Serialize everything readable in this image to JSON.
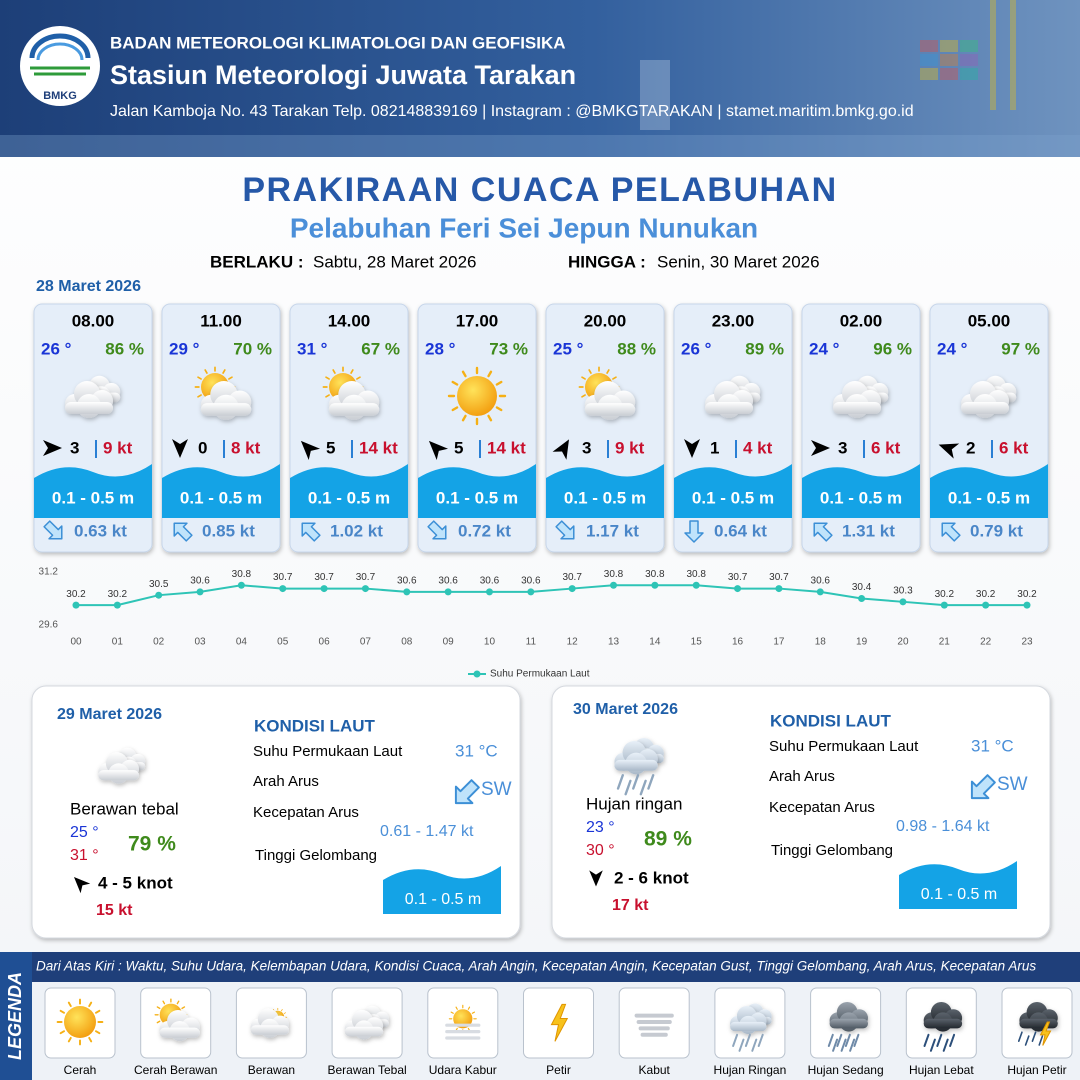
{
  "header": {
    "logo": "BMKG",
    "agency": "BADAN METEOROLOGI KLIMATOLOGI DAN GEOFISIKA",
    "station": "Stasiun Meteorologi Juwata Tarakan",
    "contact": "Jalan Kamboja No. 43 Tarakan  Telp. 082148839169 | Instagram : @BMKGTARAKAN | stamet.maritim.bmkg.go.id"
  },
  "title": "PRAKIRAAN CUACA PELABUHAN",
  "subtitle": "Pelabuhan Feri Sei Jepun Nunukan",
  "validity": {
    "from_label": "BERLAKU :",
    "from": "Sabtu, 28 Maret 2026",
    "to_label": "HINGGA :",
    "to": "Senin, 30 Maret 2026"
  },
  "day1": {
    "date": "28 Maret 2026",
    "slots": [
      {
        "time": "08.00",
        "temp": "26 °",
        "humidity": "86 %",
        "wind": "3",
        "gust": "9 kt",
        "wave": "0.1 - 0.5 m",
        "current": "0.63 kt"
      },
      {
        "time": "11.00",
        "temp": "29 °",
        "humidity": "70 %",
        "wind": "0",
        "gust": "8 kt",
        "wave": "0.1 - 0.5 m",
        "current": "0.85 kt"
      },
      {
        "time": "14.00",
        "temp": "31 °",
        "humidity": "67 %",
        "wind": "5",
        "gust": "14 kt",
        "wave": "0.1 - 0.5 m",
        "current": "1.02 kt"
      },
      {
        "time": "17.00",
        "temp": "28 °",
        "humidity": "73 %",
        "wind": "5",
        "gust": "14 kt",
        "wave": "0.1 - 0.5 m",
        "current": "0.72 kt"
      },
      {
        "time": "20.00",
        "temp": "25 °",
        "humidity": "88 %",
        "wind": "3",
        "gust": "9 kt",
        "wave": "0.1 - 0.5 m",
        "current": "1.17 kt"
      },
      {
        "time": "23.00",
        "temp": "26 °",
        "humidity": "89 %",
        "wind": "1",
        "gust": "4 kt",
        "wave": "0.1 - 0.5 m",
        "current": "0.64 kt"
      },
      {
        "time": "02.00",
        "temp": "24 °",
        "humidity": "96 %",
        "wind": "3",
        "gust": "6 kt",
        "wave": "0.1 - 0.5 m",
        "current": "1.31 kt"
      },
      {
        "time": "05.00",
        "temp": "24 °",
        "humidity": "97 %",
        "wind": "2",
        "gust": "6 kt",
        "wave": "0.1 - 0.5 m",
        "current": "0.79 kt"
      }
    ]
  },
  "chart_data": {
    "type": "line",
    "categories": [
      "00",
      "01",
      "02",
      "03",
      "04",
      "05",
      "06",
      "07",
      "08",
      "09",
      "10",
      "11",
      "12",
      "13",
      "14",
      "15",
      "16",
      "17",
      "18",
      "19",
      "20",
      "21",
      "22",
      "23"
    ],
    "series": [
      {
        "name": "Suhu Permukaan Laut",
        "color": "#2ec4b6",
        "values": [
          30.2,
          30.2,
          30.5,
          30.6,
          30.8,
          30.7,
          30.7,
          30.7,
          30.6,
          30.6,
          30.6,
          30.6,
          30.7,
          30.8,
          30.8,
          30.8,
          30.7,
          30.7,
          30.6,
          30.4,
          30.3,
          30.2,
          30.2,
          30.2
        ]
      }
    ],
    "ylim": [
      29.6,
      31.2
    ],
    "yticks": [
      29.6,
      31.2
    ]
  },
  "days": [
    {
      "date": "29 Maret 2026",
      "condition": "Berawan tebal",
      "temp_min": "25 °",
      "temp_max": "31 °",
      "humidity": "79 %",
      "wind": "4 - 5 knot",
      "gust": "15 kt",
      "sea": {
        "heading": "KONDISI LAUT",
        "sst_label": "Suhu Permukaan Laut",
        "sst": "31 °C",
        "current_dir_label": "Arah Arus",
        "current_dir": "SW",
        "current_speed_label": "Kecepatan Arus",
        "current_speed": "0.61 - 1.47 kt",
        "wave_label": "Tinggi Gelombang",
        "wave": "0.1 - 0.5 m"
      }
    },
    {
      "date": "30 Maret 2026",
      "condition": "Hujan ringan",
      "temp_min": "23 °",
      "temp_max": "30 °",
      "humidity": "89 %",
      "wind": "2 - 6 knot",
      "gust": "17 kt",
      "sea": {
        "heading": "KONDISI LAUT",
        "sst_label": "Suhu Permukaan Laut",
        "sst": "31 °C",
        "current_dir_label": "Arah Arus",
        "current_dir": "SW",
        "current_speed_label": "Kecepatan Arus",
        "current_speed": "0.98 - 1.64 kt",
        "wave_label": "Tinggi Gelombang",
        "wave": "0.1 - 0.5 m"
      }
    }
  ],
  "legend": {
    "label": "LEGENDA",
    "description": "Dari Atas Kiri : Waktu, Suhu Udara, Kelembapan Udara, Kondisi Cuaca, Arah Angin, Kecepatan Angin, Kecepatan Gust, Tinggi Gelombang, Arah Arus, Kecepatan Arus",
    "items": [
      "Cerah",
      "Cerah Berawan",
      "Berawan",
      "Berawan Tebal",
      "Udara Kabur",
      "Petir",
      "Kabut",
      "Hujan Ringan",
      "Hujan Sedang",
      "Hujan Lebat",
      "Hujan Petir"
    ]
  }
}
